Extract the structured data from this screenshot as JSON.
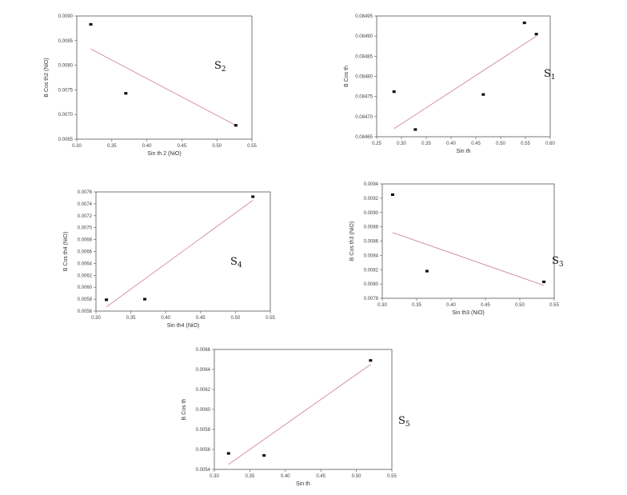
{
  "chart_data": [
    {
      "type": "scatter",
      "sample_label": "S",
      "sample_sub": "2",
      "xlabel": "Sin th 2 (NiO)",
      "ylabel": "B Cos th2 (NiO)",
      "xlim": [
        0.3,
        0.55
      ],
      "ylim": [
        0.0065,
        0.009
      ],
      "xticks": [
        "0.30",
        "0.35",
        "0.40",
        "0.45",
        "0.50",
        "0.55"
      ],
      "yticks": [
        "0.0065",
        "0.0070",
        "0.0075",
        "0.0080",
        "0.0085",
        "0.0090"
      ],
      "points": [
        {
          "x": 0.32,
          "y": 0.00883
        },
        {
          "x": 0.37,
          "y": 0.00743
        },
        {
          "x": 0.527,
          "y": 0.00678
        }
      ],
      "fit": [
        {
          "x": 0.32,
          "y": 0.00833
        },
        {
          "x": 0.527,
          "y": 0.00678
        }
      ],
      "fit_color": "#d08a96"
    },
    {
      "type": "scatter",
      "sample_label": "S",
      "sample_sub": "1",
      "xlabel": "Sin th",
      "ylabel": "B Cos th",
      "xlim": [
        0.25,
        0.6
      ],
      "ylim": [
        0.08465,
        0.08495
      ],
      "xticks": [
        "0.25",
        "0.30",
        "0.35",
        "0.40",
        "0.45",
        "0.50",
        "0.55",
        "0.60"
      ],
      "yticks": [
        "0.08465",
        "0.08470",
        "0.08475",
        "0.08480",
        "0.08485",
        "0.08490",
        "0.08495"
      ],
      "points": [
        {
          "x": 0.285,
          "y": 0.084762
        },
        {
          "x": 0.328,
          "y": 0.084668
        },
        {
          "x": 0.465,
          "y": 0.084755
        },
        {
          "x": 0.548,
          "y": 0.084933
        },
        {
          "x": 0.572,
          "y": 0.084905
        }
      ],
      "fit": [
        {
          "x": 0.285,
          "y": 0.08467
        },
        {
          "x": 0.572,
          "y": 0.0849
        }
      ],
      "fit_color": "#d08a96"
    },
    {
      "type": "scatter",
      "sample_label": "S",
      "sample_sub": "4",
      "xlabel": "Sin th4 (NiO)",
      "ylabel": "B Cos th4 (NiO)",
      "xlim": [
        0.3,
        0.55
      ],
      "ylim": [
        0.0056,
        0.0076
      ],
      "xticks": [
        "0.30",
        "0.35",
        "0.40",
        "0.45",
        "0.50",
        "0.55"
      ],
      "yticks": [
        "0.0056",
        "0.0058",
        "0.0060",
        "0.0062",
        "0.0064",
        "0.0066",
        "0.0068",
        "0.0070",
        "0.0072",
        "0.0074",
        "0.0076"
      ],
      "points": [
        {
          "x": 0.315,
          "y": 0.00579
        },
        {
          "x": 0.37,
          "y": 0.0058
        },
        {
          "x": 0.525,
          "y": 0.00752
        }
      ],
      "fit": [
        {
          "x": 0.315,
          "y": 0.00567
        },
        {
          "x": 0.525,
          "y": 0.00746
        }
      ],
      "fit_color": "#d08a96"
    },
    {
      "type": "scatter",
      "sample_label": "S",
      "sample_sub": "3",
      "xlabel": "Sin th3 (NiO)",
      "ylabel": "B Cos th3 (NiO)",
      "xlim": [
        0.3,
        0.55
      ],
      "ylim": [
        0.0078,
        0.0094
      ],
      "xticks": [
        "0.30",
        "0.35",
        "0.40",
        "0.45",
        "0.50",
        "0.55"
      ],
      "yticks": [
        "0.0078",
        "0.0080",
        "0.0082",
        "0.0084",
        "0.0086",
        "0.0088",
        "0.0090",
        "0.0092",
        "0.0094"
      ],
      "points": [
        {
          "x": 0.315,
          "y": 0.00925
        },
        {
          "x": 0.365,
          "y": 0.00818
        },
        {
          "x": 0.535,
          "y": 0.00803
        }
      ],
      "fit": [
        {
          "x": 0.315,
          "y": 0.00872
        },
        {
          "x": 0.535,
          "y": 0.00798
        }
      ],
      "fit_color": "#d08a96"
    },
    {
      "type": "scatter",
      "sample_label": "S",
      "sample_sub": "5",
      "xlabel": "Sin th",
      "ylabel": "B Cos th",
      "xlim": [
        0.3,
        0.55
      ],
      "ylim": [
        0.0054,
        0.0066
      ],
      "xticks": [
        "0.30",
        "0.35",
        "0.40",
        "0.45",
        "0.50",
        "0.55"
      ],
      "yticks": [
        "0.0054",
        "0.0056",
        "0.0058",
        "0.0060",
        "0.0062",
        "0.0064",
        "0.0066"
      ],
      "points": [
        {
          "x": 0.32,
          "y": 0.00556
        },
        {
          "x": 0.37,
          "y": 0.00554
        },
        {
          "x": 0.52,
          "y": 0.00649
        }
      ],
      "fit": [
        {
          "x": 0.32,
          "y": 0.00545
        },
        {
          "x": 0.52,
          "y": 0.00645
        }
      ],
      "fit_color": "#d08a96"
    }
  ]
}
